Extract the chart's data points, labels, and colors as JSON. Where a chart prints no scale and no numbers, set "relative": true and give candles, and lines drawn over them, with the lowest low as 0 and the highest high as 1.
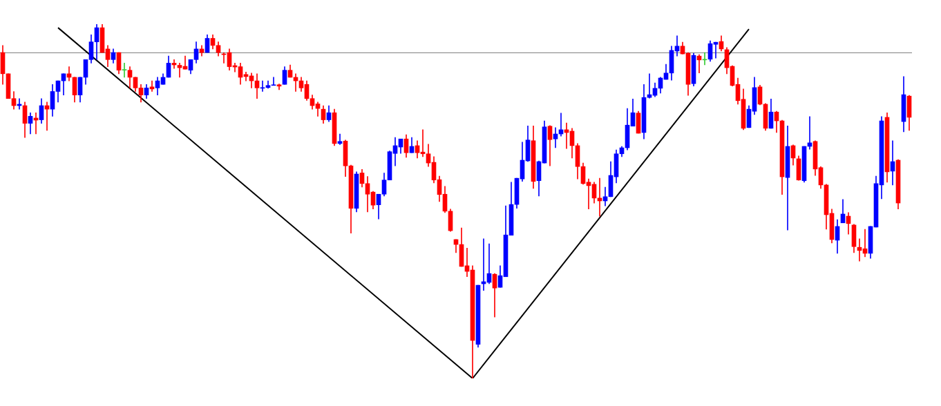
{
  "chart_data": {
    "type": "candlestick",
    "relative": true,
    "legend": false,
    "categories": [
      null,
      null,
      null,
      null,
      null,
      null,
      null,
      null,
      null,
      null,
      null,
      null,
      null,
      null,
      null,
      null,
      null,
      null,
      null,
      null,
      null,
      null,
      null,
      null,
      null,
      null,
      null,
      null,
      null,
      null,
      null,
      null,
      null,
      null,
      null,
      null,
      null,
      null,
      null,
      null,
      null,
      null,
      null,
      null,
      null,
      null,
      null,
      null,
      null,
      null,
      null,
      null,
      null,
      null,
      null,
      null,
      null,
      null,
      null,
      null,
      null,
      null,
      null,
      null,
      null,
      null,
      null,
      null,
      null,
      null,
      null,
      null,
      null,
      null,
      null,
      null,
      null,
      null,
      null,
      null,
      null,
      null,
      null,
      null,
      null,
      null,
      null,
      null,
      null,
      null,
      null,
      null,
      null,
      null,
      null,
      null,
      null,
      null,
      null,
      null,
      null,
      null,
      null,
      null,
      null,
      null,
      null,
      null,
      null,
      null,
      null,
      null,
      null,
      null,
      null,
      null,
      null,
      null,
      null,
      null,
      null,
      null,
      null,
      null,
      null,
      null,
      null,
      null,
      null,
      null,
      null,
      null,
      null,
      null,
      null,
      null,
      null,
      null,
      null,
      null,
      null,
      null,
      null,
      null,
      null,
      null,
      null,
      null,
      null,
      null,
      null,
      null,
      null,
      null,
      null,
      null,
      null,
      null,
      null,
      null,
      null,
      null,
      null,
      null,
      null
    ],
    "ohlc": [
      [
        0.92,
        0.94,
        0.83,
        0.86
      ],
      [
        0.86,
        0.86,
        0.79,
        0.79
      ],
      [
        0.79,
        0.81,
        0.76,
        0.77
      ],
      [
        0.77,
        0.79,
        0.76,
        0.774
      ],
      [
        0.77,
        0.78,
        0.68,
        0.72
      ],
      [
        0.72,
        0.75,
        0.69,
        0.74
      ],
      [
        0.735,
        0.75,
        0.69,
        0.729
      ],
      [
        0.73,
        0.79,
        0.72,
        0.77
      ],
      [
        0.77,
        0.78,
        0.7,
        0.76
      ],
      [
        0.76,
        0.83,
        0.74,
        0.81
      ],
      [
        0.81,
        0.84,
        0.78,
        0.84
      ],
      [
        0.84,
        0.86,
        0.8,
        0.86
      ],
      [
        0.86,
        0.88,
        0.84,
        0.85
      ],
      [
        0.85,
        0.85,
        0.78,
        0.8
      ],
      [
        0.8,
        0.85,
        0.78,
        0.85
      ],
      [
        0.85,
        0.9,
        0.83,
        0.9
      ],
      [
        0.9,
        0.97,
        0.89,
        0.95
      ],
      [
        0.95,
        1,
        0.9,
        0.99
      ],
      [
        0.99,
        1,
        0.92,
        0.92
      ],
      [
        0.93,
        0.94,
        0.88,
        0.9
      ],
      [
        0.9,
        0.93,
        0.89,
        0.92
      ],
      [
        0.92,
        0.92,
        0.86,
        0.87
      ],
      [
        0.87,
        0.89,
        0.85,
        0.87
      ],
      [
        0.87,
        0.88,
        0.82,
        0.85
      ],
      [
        0.85,
        0.85,
        0.81,
        0.82
      ],
      [
        0.82,
        0.83,
        0.78,
        0.8
      ],
      [
        0.8,
        0.83,
        0.79,
        0.82
      ],
      [
        0.823,
        0.84,
        0.81,
        0.817
      ],
      [
        0.82,
        0.85,
        0.8,
        0.84
      ],
      [
        0.83,
        0.86,
        0.83,
        0.85
      ],
      [
        0.85,
        0.91,
        0.85,
        0.89
      ],
      [
        0.89,
        0.9,
        0.875,
        0.885
      ],
      [
        0.884,
        0.89,
        0.85,
        0.877
      ],
      [
        0.881,
        0.91,
        0.873,
        0.873
      ],
      [
        0.87,
        0.9,
        0.86,
        0.9
      ],
      [
        0.9,
        0.95,
        0.89,
        0.93
      ],
      [
        0.93,
        0.94,
        0.91,
        0.92
      ],
      [
        0.92,
        0.97,
        0.92,
        0.96
      ],
      [
        0.96,
        0.97,
        0.93,
        0.94
      ],
      [
        0.94,
        0.95,
        0.91,
        0.92
      ],
      [
        0.916,
        0.92,
        0.89,
        0.914
      ],
      [
        0.92,
        0.93,
        0.87,
        0.88
      ],
      [
        0.883,
        0.89,
        0.865,
        0.879
      ],
      [
        0.88,
        0.89,
        0.83,
        0.85
      ],
      [
        0.858,
        0.865,
        0.84,
        0.852
      ],
      [
        0.854,
        0.862,
        0.82,
        0.84
      ],
      [
        0.84,
        0.86,
        0.79,
        0.82
      ],
      [
        0.819,
        0.84,
        0.81,
        0.821
      ],
      [
        0.821,
        0.84,
        0.819,
        0.827
      ],
      [
        0.827,
        0.85,
        0.827,
        0.829
      ],
      [
        0.829,
        0.831,
        0.815,
        0.825
      ],
      [
        0.83,
        0.88,
        0.83,
        0.87
      ],
      [
        0.87,
        0.885,
        0.85,
        0.85
      ],
      [
        0.85,
        0.86,
        0.81,
        0.84
      ],
      [
        0.84,
        0.85,
        0.81,
        0.82
      ],
      [
        0.83,
        0.84,
        0.785,
        0.79
      ],
      [
        0.79,
        0.8,
        0.76,
        0.77
      ],
      [
        0.775,
        0.78,
        0.74,
        0.762
      ],
      [
        0.76,
        0.77,
        0.72,
        0.73
      ],
      [
        0.73,
        0.77,
        0.725,
        0.75
      ],
      [
        0.75,
        0.76,
        0.657,
        0.663
      ],
      [
        0.663,
        0.69,
        0.66,
        0.669
      ],
      [
        0.67,
        0.673,
        0.57,
        0.6
      ],
      [
        0.6,
        0.602,
        0.41,
        0.48
      ],
      [
        0.48,
        0.583,
        0.47,
        0.577
      ],
      [
        0.58,
        0.59,
        0.54,
        0.55
      ],
      [
        0.55,
        0.57,
        0.47,
        0.52
      ],
      [
        0.526,
        0.528,
        0.478,
        0.489
      ],
      [
        0.49,
        0.52,
        0.45,
        0.52
      ],
      [
        0.52,
        0.58,
        0.515,
        0.56
      ],
      [
        0.56,
        0.642,
        0.56,
        0.64
      ],
      [
        0.635,
        0.68,
        0.6,
        0.657
      ],
      [
        0.653,
        0.676,
        0.635,
        0.676
      ],
      [
        0.676,
        0.688,
        0.624,
        0.637
      ],
      [
        0.637,
        0.68,
        0.637,
        0.655
      ],
      [
        0.657,
        0.671,
        0.622,
        0.637
      ],
      [
        0.639,
        0.702,
        0.626,
        0.634
      ],
      [
        0.634,
        0.661,
        0.598,
        0.608
      ],
      [
        0.61,
        0.626,
        0.552,
        0.56
      ],
      [
        0.561,
        0.571,
        0.499,
        0.519
      ],
      [
        0.52,
        0.542,
        0.468,
        0.472
      ],
      [
        0.472,
        0.478,
        0.415,
        0.417
      ],
      [
        0.392,
        0.392,
        0.355,
        0.378
      ],
      [
        0.378,
        0.425,
        0.316,
        0.316
      ],
      [
        0.318,
        0.368,
        0.287,
        0.302
      ],
      [
        0.306,
        0.318,
        0,
        0.107
      ],
      [
        0.096,
        0.263,
        0.088,
        0.263
      ],
      [
        0.267,
        0.394,
        0.248,
        0.273
      ],
      [
        0.271,
        0.38,
        0.267,
        0.296
      ],
      [
        0.294,
        0.296,
        0.173,
        0.255
      ],
      [
        0.257,
        0.318,
        0.257,
        0.29
      ],
      [
        0.287,
        0.487,
        0.287,
        0.405
      ],
      [
        0.404,
        0.554,
        0.404,
        0.491
      ],
      [
        0.491,
        0.565,
        0.48,
        0.565
      ],
      [
        0.563,
        0.667,
        0.556,
        0.616
      ],
      [
        0.614,
        0.713,
        0.612,
        0.673
      ],
      [
        0.671,
        0.713,
        0.536,
        0.556
      ],
      [
        0.558,
        0.614,
        0.515,
        0.612
      ],
      [
        0.608,
        0.727,
        0.608,
        0.71
      ],
      [
        0.712,
        0.714,
        0.6,
        0.674
      ],
      [
        0.676,
        0.708,
        0.651,
        0.69
      ],
      [
        0.69,
        0.749,
        0.684,
        0.702
      ],
      [
        0.702,
        0.721,
        0.649,
        0.694
      ],
      [
        0.698,
        0.706,
        0.622,
        0.657
      ],
      [
        0.657,
        0.663,
        0.563,
        0.598
      ],
      [
        0.598,
        0.608,
        0.548,
        0.55
      ],
      [
        0.554,
        0.563,
        0.478,
        0.544
      ],
      [
        0.548,
        0.554,
        0.495,
        0.509
      ],
      [
        0.509,
        0.565,
        0.458,
        0.501
      ],
      [
        0.501,
        0.54,
        0.487,
        0.513
      ],
      [
        0.513,
        0.612,
        0.513,
        0.573
      ],
      [
        0.569,
        0.645,
        0.552,
        0.634
      ],
      [
        0.634,
        0.655,
        0.626,
        0.651
      ],
      [
        0.651,
        0.762,
        0.645,
        0.715
      ],
      [
        0.712,
        0.789,
        0.712,
        0.75
      ],
      [
        0.749,
        0.754,
        0.692,
        0.692
      ],
      [
        0.694,
        0.83,
        0.676,
        0.793
      ],
      [
        0.793,
        0.86,
        0.791,
        0.801
      ],
      [
        0.799,
        0.834,
        0.795,
        0.819
      ],
      [
        0.819,
        0.85,
        0.805,
        0.848
      ],
      [
        0.844,
        0.887,
        0.844,
        0.862
      ],
      [
        0.862,
        0.938,
        0.842,
        0.926
      ],
      [
        0.924,
        0.967,
        0.91,
        0.938
      ],
      [
        0.938,
        0.949,
        0.916,
        0.916
      ],
      [
        0.918,
        0.92,
        0.799,
        0.83
      ],
      [
        0.832,
        0.918,
        0.825,
        0.912
      ],
      [
        0.91,
        0.914,
        0.862,
        0.899
      ],
      [
        0.899,
        0.92,
        0.885,
        0.899
      ],
      [
        0.901,
        0.953,
        0.895,
        0.945
      ],
      [
        0.943,
        0.949,
        0.904,
        0.949
      ],
      [
        0.951,
        0.967,
        0.924,
        0.93
      ],
      [
        0.928,
        0.934,
        0.86,
        0.877
      ],
      [
        0.881,
        0.883,
        0.825,
        0.827
      ],
      [
        0.83,
        0.848,
        0.774,
        0.784
      ],
      [
        0.788,
        0.817,
        0.702,
        0.706
      ],
      [
        0.708,
        0.77,
        0.708,
        0.76
      ],
      [
        0.754,
        0.85,
        0.745,
        0.821
      ],
      [
        0.823,
        0.828,
        0.772,
        0.774
      ],
      [
        0.774,
        0.776,
        0.7,
        0.706
      ],
      [
        0.706,
        0.789,
        0.706,
        0.752
      ],
      [
        0.752,
        0.754,
        0.694,
        0.727
      ],
      [
        0.727,
        0.729,
        0.519,
        0.569
      ],
      [
        0.567,
        0.713,
        0.419,
        0.655
      ],
      [
        0.657,
        0.659,
        0.602,
        0.622
      ],
      [
        0.62,
        0.628,
        0.559,
        0.56
      ],
      [
        0.558,
        0.655,
        0.554,
        0.655
      ],
      [
        0.655,
        0.739,
        0.647,
        0.665
      ],
      [
        0.669,
        0.671,
        0.573,
        0.591
      ],
      [
        0.595,
        0.598,
        0.536,
        0.546
      ],
      [
        0.546,
        0.548,
        0.421,
        0.462
      ],
      [
        0.466,
        0.478,
        0.382,
        0.392
      ],
      [
        0.39,
        0.448,
        0.353,
        0.429
      ],
      [
        0.439,
        0.505,
        0.439,
        0.464
      ],
      [
        0.458,
        0.468,
        0.407,
        0.437
      ],
      [
        0.433,
        0.435,
        0.355,
        0.372
      ],
      [
        0.37,
        0.394,
        0.331,
        0.361
      ],
      [
        0.366,
        0.421,
        0.343,
        0.353
      ],
      [
        0.353,
        0.429,
        0.339,
        0.429
      ],
      [
        0.427,
        0.571,
        0.427,
        0.55
      ],
      [
        0.546,
        0.739,
        0.507,
        0.727
      ],
      [
        0.737,
        0.75,
        0.554,
        0.583
      ],
      [
        0.585,
        0.671,
        0.546,
        0.612
      ],
      [
        0.616,
        0.618,
        0.478,
        0.495
      ],
      [
        0.725,
        0.852,
        0.696,
        0.801
      ],
      [
        0.797,
        0.799,
        0.7,
        0.737
      ]
    ],
    "colors": [
      "#ff0000",
      "#ff0000",
      "#ff0000",
      "#0000ff",
      "#ff0000",
      "#0000ff",
      "#ff0000",
      "#0000ff",
      "#ff0000",
      "#0000ff",
      "#0000ff",
      "#0000ff",
      "#ff0000",
      "#ff0000",
      "#0000ff",
      "#0000ff",
      "#0000ff",
      "#0000ff",
      "#ff0000",
      "#ff0000",
      "#0000ff",
      "#ff0000",
      "#33cc33",
      "#ff0000",
      "#ff0000",
      "#ff0000",
      "#0000ff",
      "#ff0000",
      "#0000ff",
      "#0000ff",
      "#0000ff",
      "#ff0000",
      "#ff0000",
      "#ff0000",
      "#0000ff",
      "#0000ff",
      "#ff0000",
      "#0000ff",
      "#ff0000",
      "#ff0000",
      "#ff0000",
      "#ff0000",
      "#ff0000",
      "#ff0000",
      "#ff0000",
      "#ff0000",
      "#ff0000",
      "#0000ff",
      "#0000ff",
      "#0000ff",
      "#ff0000",
      "#0000ff",
      "#ff0000",
      "#ff0000",
      "#ff0000",
      "#ff0000",
      "#ff0000",
      "#ff0000",
      "#ff0000",
      "#0000ff",
      "#ff0000",
      "#0000ff",
      "#ff0000",
      "#ff0000",
      "#0000ff",
      "#ff0000",
      "#ff0000",
      "#ff0000",
      "#0000ff",
      "#0000ff",
      "#0000ff",
      "#0000ff",
      "#0000ff",
      "#ff0000",
      "#0000ff",
      "#ff0000",
      "#ff0000",
      "#ff0000",
      "#ff0000",
      "#ff0000",
      "#ff0000",
      "#ff0000",
      "#ff0000",
      "#ff0000",
      "#ff0000",
      "#ff0000",
      "#0000ff",
      "#0000ff",
      "#0000ff",
      "#ff0000",
      "#0000ff",
      "#0000ff",
      "#0000ff",
      "#0000ff",
      "#0000ff",
      "#0000ff",
      "#ff0000",
      "#0000ff",
      "#0000ff",
      "#ff0000",
      "#0000ff",
      "#0000ff",
      "#ff0000",
      "#ff0000",
      "#ff0000",
      "#ff0000",
      "#ff0000",
      "#ff0000",
      "#ff0000",
      "#0000ff",
      "#0000ff",
      "#0000ff",
      "#0000ff",
      "#0000ff",
      "#0000ff",
      "#ff0000",
      "#0000ff",
      "#0000ff",
      "#0000ff",
      "#0000ff",
      "#0000ff",
      "#0000ff",
      "#0000ff",
      "#ff0000",
      "#ff0000",
      "#0000ff",
      "#ff0000",
      "#33cc33",
      "#0000ff",
      "#0000ff",
      "#ff0000",
      "#ff0000",
      "#ff0000",
      "#ff0000",
      "#ff0000",
      "#0000ff",
      "#0000ff",
      "#ff0000",
      "#ff0000",
      "#0000ff",
      "#ff0000",
      "#ff0000",
      "#0000ff",
      "#ff0000",
      "#ff0000",
      "#0000ff",
      "#0000ff",
      "#ff0000",
      "#ff0000",
      "#ff0000",
      "#ff0000",
      "#0000ff",
      "#0000ff",
      "#ff0000",
      "#ff0000",
      "#ff0000",
      "#ff0000",
      "#0000ff",
      "#0000ff",
      "#0000ff",
      "#ff0000",
      "#0000ff",
      "#ff0000",
      "#0000ff",
      "#ff0000"
    ],
    "series": [
      {
        "type": "line",
        "color": "#000000",
        "values": [
          null,
          null,
          null,
          null,
          null,
          null,
          null,
          null,
          null,
          null,
          0.99,
          null,
          null,
          null,
          null,
          null,
          null,
          null,
          null,
          null,
          null,
          null,
          null,
          null,
          null,
          null,
          null,
          null,
          null,
          null,
          null,
          null,
          null,
          null,
          null,
          null,
          null,
          null,
          null,
          null,
          null,
          null,
          null,
          null,
          null,
          null,
          null,
          null,
          null,
          null,
          null,
          null,
          null,
          null,
          null,
          null,
          null,
          null,
          null,
          null,
          null,
          null,
          null,
          null,
          null,
          null,
          null,
          null,
          null,
          null,
          null,
          null,
          null,
          null,
          null,
          null,
          null,
          null,
          null,
          null,
          null,
          null,
          null,
          null,
          null,
          0,
          null,
          null,
          null,
          null,
          null,
          null,
          null,
          null,
          null,
          null,
          null,
          null,
          null,
          null,
          null,
          null,
          null,
          null,
          null,
          null,
          null,
          null,
          null,
          null,
          null,
          null,
          null,
          null,
          null,
          null,
          null,
          null,
          null,
          null,
          null,
          null,
          null,
          null,
          null,
          null,
          null,
          null,
          null,
          null,
          null,
          null,
          null,
          null,
          null,
          null,
          null,
          null,
          null,
          null,
          null,
          null,
          null,
          null,
          null,
          null,
          null,
          null,
          null,
          null,
          null,
          null,
          null,
          null,
          null,
          null,
          null,
          null,
          null,
          null,
          null,
          null,
          null,
          null,
          null
        ]
      },
      {
        "type": "line",
        "color": "#000000",
        "values": [
          null,
          null,
          null,
          null,
          null,
          null,
          null,
          null,
          null,
          null,
          null,
          null,
          null,
          null,
          null,
          null,
          null,
          null,
          null,
          null,
          null,
          null,
          null,
          null,
          null,
          null,
          null,
          null,
          null,
          null,
          null,
          null,
          null,
          null,
          null,
          null,
          null,
          null,
          null,
          null,
          null,
          null,
          null,
          null,
          null,
          null,
          null,
          null,
          null,
          null,
          null,
          null,
          null,
          null,
          null,
          null,
          null,
          null,
          null,
          null,
          null,
          null,
          null,
          null,
          null,
          null,
          null,
          null,
          null,
          null,
          null,
          null,
          null,
          null,
          null,
          null,
          null,
          null,
          null,
          null,
          null,
          null,
          null,
          null,
          null,
          0,
          null,
          null,
          null,
          null,
          null,
          null,
          null,
          null,
          null,
          null,
          null,
          null,
          null,
          null,
          null,
          null,
          null,
          null,
          null,
          null,
          null,
          null,
          null,
          null,
          null,
          null,
          null,
          null,
          null,
          null,
          null,
          null,
          null,
          null,
          null,
          null,
          null,
          null,
          null,
          null,
          null,
          null,
          null,
          null,
          null,
          null,
          null,
          null,
          null,
          0.986,
          null,
          null,
          null,
          null,
          null,
          null,
          null,
          null,
          null,
          null,
          null,
          null,
          null,
          null,
          null,
          null,
          null,
          null,
          null,
          null,
          null,
          null,
          null,
          null,
          null,
          null,
          null,
          null,
          null
        ]
      }
    ],
    "ref_lines": [
      {
        "axis": "y",
        "value": 0.92,
        "color": "#808080"
      }
    ]
  }
}
